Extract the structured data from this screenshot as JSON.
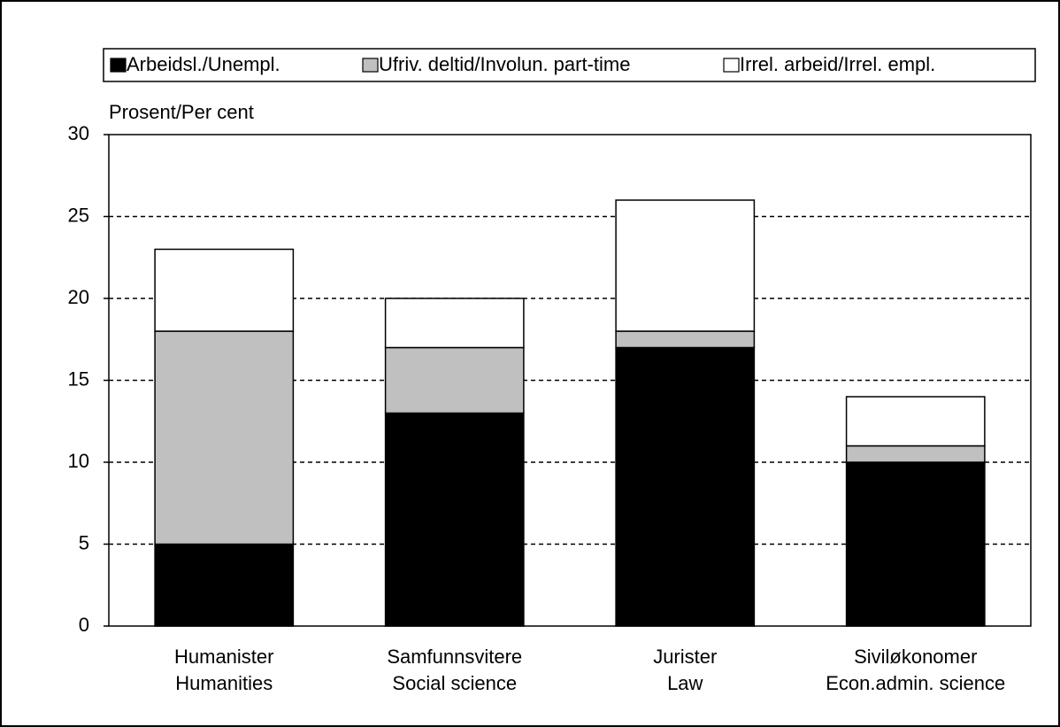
{
  "chart_data": {
    "type": "stacked_bar",
    "y_label": "Prosent/Per cent",
    "categories": [
      [
        "Humanister",
        "Humanities"
      ],
      [
        "Samfunnsvitere",
        "Social science"
      ],
      [
        "Jurister",
        "Law"
      ],
      [
        "Siviløkonomer",
        "Econ.admin. science"
      ]
    ],
    "series": [
      {
        "name": "Arbeidsl./Unempl.",
        "color": "#000000",
        "values": [
          5,
          13,
          17,
          10
        ]
      },
      {
        "name": "Ufriv. deltid/Involun. part-time",
        "color": "#c0c0c0",
        "values": [
          13,
          4,
          1,
          1
        ]
      },
      {
        "name": "Irrel. arbeid/Irrel. empl.",
        "color": "#ffffff",
        "values": [
          5,
          3,
          8,
          3
        ]
      }
    ],
    "ylim": [
      0,
      30
    ],
    "yticks": [
      0,
      5,
      10,
      15,
      20,
      25,
      30
    ],
    "grid": true,
    "legend": "top"
  }
}
